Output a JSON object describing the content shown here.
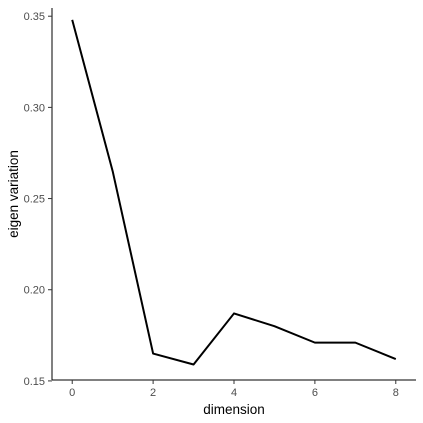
{
  "chart_data": {
    "type": "line",
    "title": "",
    "xlabel": "dimension",
    "ylabel": "eigen variation",
    "xlim": [
      -0.5,
      8.5
    ],
    "ylim": [
      0.1505,
      0.3545
    ],
    "x_ticks": [
      0,
      2,
      4,
      6,
      8
    ],
    "y_ticks": [
      0.15,
      0.2,
      0.25,
      0.3,
      0.35
    ],
    "x_tick_labels": [
      "0",
      "2",
      "4",
      "6",
      "8"
    ],
    "y_tick_labels": [
      "0.15",
      "0.20",
      "0.25",
      "0.30",
      "0.35"
    ],
    "grid": false,
    "legend": "none",
    "line_color": "#000000",
    "series": [
      {
        "x": [
          0,
          1,
          2,
          3,
          4,
          5,
          6,
          7,
          8
        ],
        "values": [
          0.348,
          0.265,
          0.165,
          0.159,
          0.187,
          0.18,
          0.171,
          0.171,
          0.162
        ]
      }
    ]
  }
}
